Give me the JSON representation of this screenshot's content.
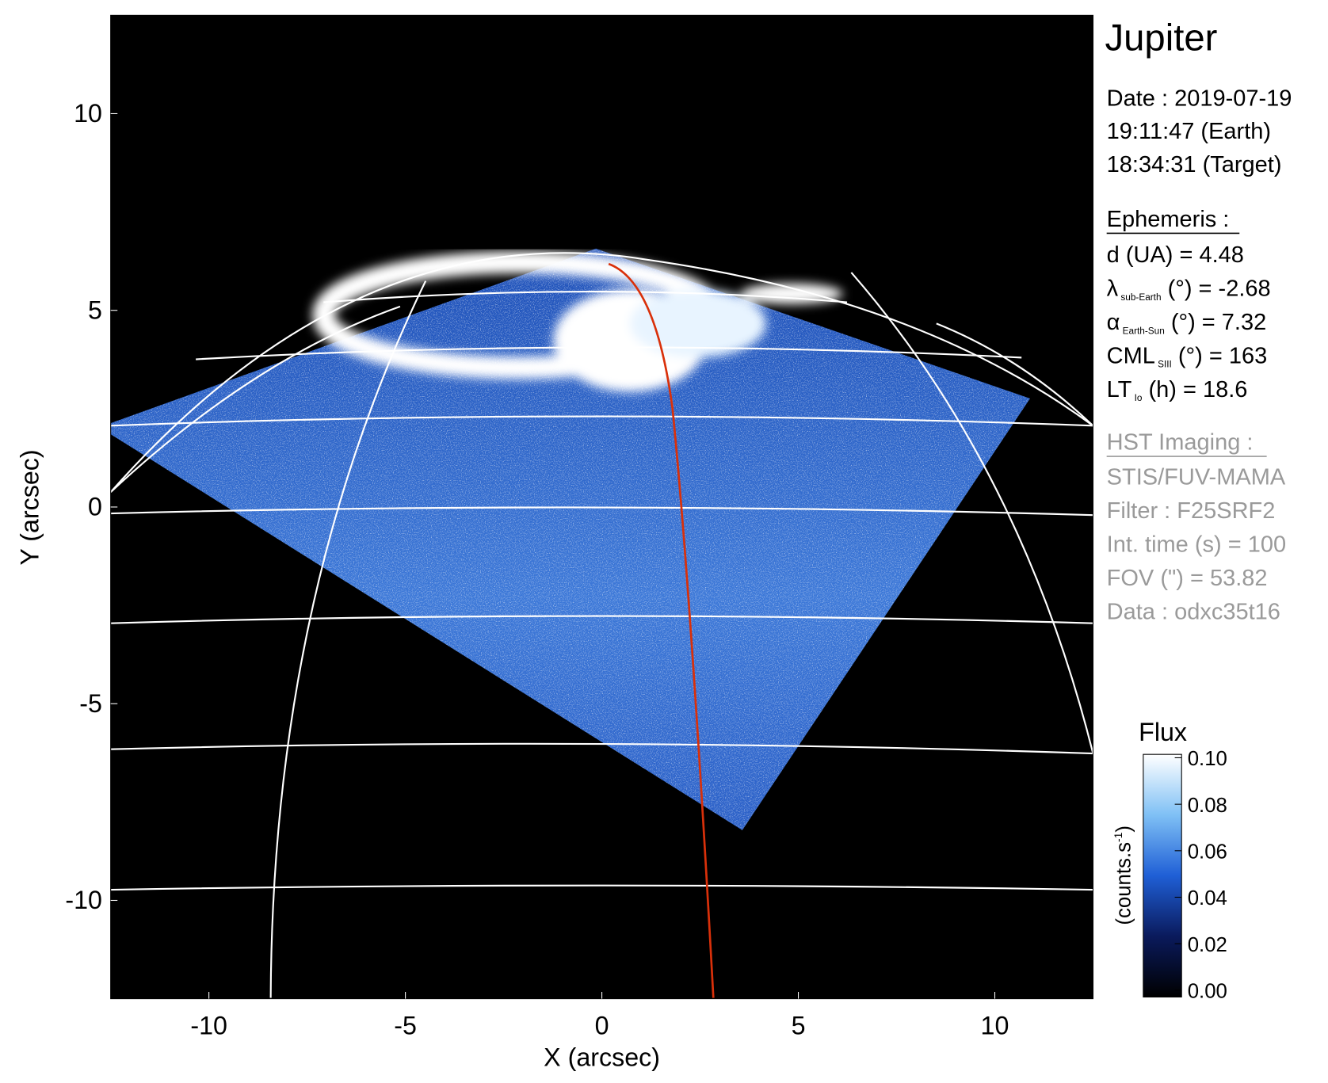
{
  "chart_data": {
    "type": "image",
    "xlabel": "X (arcsec)",
    "ylabel": "Y (arcsec)",
    "xlim": [
      -12.5,
      12.5
    ],
    "ylim": [
      -12.5,
      12.5
    ],
    "xticks": [
      -10,
      -5,
      0,
      5,
      10
    ],
    "yticks": [
      -10,
      -5,
      0,
      5,
      10
    ],
    "colorbar": {
      "title": "Flux",
      "label": "(counts.s",
      "label_sup": "-1",
      "label_end": ")",
      "lim": [
        0,
        0.1
      ],
      "ticks": [
        {
          "value": 0,
          "label": "0.00"
        },
        {
          "value": 0.02,
          "label": "0.02"
        },
        {
          "value": 0.04,
          "label": "0.04"
        },
        {
          "value": 0.06,
          "label": "0.06"
        },
        {
          "value": 0.08,
          "label": "0.08"
        },
        {
          "value": 0.1,
          "label": "0.10"
        }
      ],
      "colormap": [
        "#000000",
        "#0a1a5c",
        "#1f5fd6",
        "#7fc0f5",
        "#ffffff"
      ]
    }
  },
  "info": {
    "title": "Jupiter",
    "date": [
      "Date : 2019-07-19",
      "19:11:47 (Earth)",
      "18:34:31 (Target)"
    ],
    "ephemeris": {
      "heading": "Ephemeris :",
      "items": [
        {
          "symbol": "d (UA)    = 4.48"
        },
        {
          "symbol": "λ",
          "sub": "sub-Earth",
          "rest": " (°) = -2.68"
        },
        {
          "symbol": "α",
          "sub": "Earth-Sun",
          "rest": " (°) = 7.32"
        },
        {
          "symbol": "CML",
          "sub": "SIII",
          "rest": " (°) = 163"
        },
        {
          "symbol": "LT",
          "sub": "Io",
          "rest": " (h) = 18.6"
        }
      ]
    },
    "imaging": {
      "heading": "HST Imaging :",
      "lines": [
        "STIS/FUV-MAMA",
        "Filter : F25SRF2",
        "Int. time (s) = 100",
        "FOV (\") = 53.82",
        "Data : odxc35t16"
      ]
    }
  }
}
